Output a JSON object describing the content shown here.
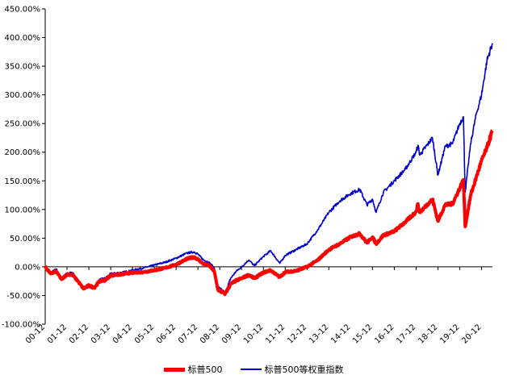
{
  "chart_data": {
    "type": "line",
    "title": "",
    "xlabel": "",
    "ylabel": "",
    "ylim": [
      -100,
      450
    ],
    "yticks": [
      "-100.00%",
      "-50.00%",
      "0.00%",
      "50.00%",
      "100.00%",
      "150.00%",
      "200.00%",
      "250.00%",
      "300.00%",
      "350.00%",
      "400.00%",
      "450.00%"
    ],
    "xticks": [
      "00-12",
      "01-12",
      "02-12",
      "03-12",
      "04-12",
      "05-12",
      "06-12",
      "07-12",
      "08-12",
      "09-12",
      "10-12",
      "11-12",
      "12-12",
      "13-12",
      "14-12",
      "15-12",
      "16-12",
      "17-12",
      "18-12",
      "19-12",
      "20-12"
    ],
    "x_start": "2000-12",
    "x_end": "2021-06",
    "grid": false,
    "legend_position": "bottom",
    "series": [
      {
        "name": "标普500",
        "color": "#ff0000",
        "points": [
          [
            "2000-12",
            0
          ],
          [
            "2001-03",
            -12
          ],
          [
            "2001-06",
            -8
          ],
          [
            "2001-09",
            -22
          ],
          [
            "2001-12",
            -13
          ],
          [
            "2002-03",
            -14
          ],
          [
            "2002-06",
            -25
          ],
          [
            "2002-09",
            -38
          ],
          [
            "2002-12",
            -33
          ],
          [
            "2003-03",
            -36
          ],
          [
            "2003-06",
            -25
          ],
          [
            "2003-09",
            -23
          ],
          [
            "2003-12",
            -15
          ],
          [
            "2004-06",
            -13
          ],
          [
            "2004-12",
            -10
          ],
          [
            "2005-06",
            -9
          ],
          [
            "2005-12",
            -6
          ],
          [
            "2006-06",
            -2
          ],
          [
            "2006-12",
            4
          ],
          [
            "2007-06",
            14
          ],
          [
            "2007-10",
            17
          ],
          [
            "2007-12",
            13
          ],
          [
            "2008-03",
            5
          ],
          [
            "2008-06",
            3
          ],
          [
            "2008-09",
            -8
          ],
          [
            "2008-11",
            -40
          ],
          [
            "2009-03",
            -47
          ],
          [
            "2009-06",
            -30
          ],
          [
            "2009-09",
            -24
          ],
          [
            "2009-12",
            -20
          ],
          [
            "2010-04",
            -14
          ],
          [
            "2010-07",
            -20
          ],
          [
            "2010-12",
            -10
          ],
          [
            "2011-04",
            -6
          ],
          [
            "2011-09",
            -18
          ],
          [
            "2011-12",
            -9
          ],
          [
            "2012-06",
            -7
          ],
          [
            "2012-12",
            0
          ],
          [
            "2013-06",
            12
          ],
          [
            "2013-12",
            30
          ],
          [
            "2014-06",
            40
          ],
          [
            "2014-12",
            52
          ],
          [
            "2015-05",
            58
          ],
          [
            "2015-09",
            42
          ],
          [
            "2015-12",
            52
          ],
          [
            "2016-02",
            40
          ],
          [
            "2016-06",
            55
          ],
          [
            "2016-12",
            62
          ],
          [
            "2017-06",
            78
          ],
          [
            "2017-12",
            96
          ],
          [
            "2018-01",
            110
          ],
          [
            "2018-02",
            95
          ],
          [
            "2018-09",
            118
          ],
          [
            "2018-12",
            80
          ],
          [
            "2019-04",
            108
          ],
          [
            "2019-08",
            110
          ],
          [
            "2019-12",
            137
          ],
          [
            "2020-02",
            152
          ],
          [
            "2020-03",
            70
          ],
          [
            "2020-06",
            125
          ],
          [
            "2020-09",
            155
          ],
          [
            "2020-12",
            185
          ],
          [
            "2021-03",
            208
          ],
          [
            "2021-06",
            238
          ]
        ]
      },
      {
        "name": "标普500等权重指数",
        "color": "#0000cc",
        "points": [
          [
            "2000-12",
            0
          ],
          [
            "2001-03",
            -10
          ],
          [
            "2001-06",
            -4
          ],
          [
            "2001-09",
            -20
          ],
          [
            "2001-12",
            -11
          ],
          [
            "2002-03",
            -10
          ],
          [
            "2002-06",
            -23
          ],
          [
            "2002-09",
            -38
          ],
          [
            "2002-12",
            -33
          ],
          [
            "2003-03",
            -36
          ],
          [
            "2003-06",
            -22
          ],
          [
            "2003-09",
            -20
          ],
          [
            "2003-12",
            -12
          ],
          [
            "2004-06",
            -10
          ],
          [
            "2004-12",
            -6
          ],
          [
            "2005-06",
            -2
          ],
          [
            "2005-12",
            3
          ],
          [
            "2006-06",
            8
          ],
          [
            "2006-12",
            15
          ],
          [
            "2007-06",
            24
          ],
          [
            "2007-10",
            26
          ],
          [
            "2007-12",
            22
          ],
          [
            "2008-03",
            12
          ],
          [
            "2008-06",
            8
          ],
          [
            "2008-09",
            -2
          ],
          [
            "2008-11",
            -35
          ],
          [
            "2009-03",
            -45
          ],
          [
            "2009-06",
            -20
          ],
          [
            "2009-09",
            -8
          ],
          [
            "2009-12",
            0
          ],
          [
            "2010-04",
            12
          ],
          [
            "2010-07",
            2
          ],
          [
            "2010-12",
            18
          ],
          [
            "2011-04",
            28
          ],
          [
            "2011-09",
            6
          ],
          [
            "2011-12",
            20
          ],
          [
            "2012-06",
            30
          ],
          [
            "2012-12",
            40
          ],
          [
            "2013-06",
            65
          ],
          [
            "2013-12",
            95
          ],
          [
            "2014-06",
            115
          ],
          [
            "2014-12",
            128
          ],
          [
            "2015-05",
            135
          ],
          [
            "2015-09",
            108
          ],
          [
            "2015-12",
            118
          ],
          [
            "2016-02",
            95
          ],
          [
            "2016-06",
            130
          ],
          [
            "2016-12",
            150
          ],
          [
            "2017-06",
            170
          ],
          [
            "2017-12",
            200
          ],
          [
            "2018-01",
            212
          ],
          [
            "2018-02",
            195
          ],
          [
            "2018-09",
            225
          ],
          [
            "2018-12",
            160
          ],
          [
            "2019-04",
            210
          ],
          [
            "2019-08",
            215
          ],
          [
            "2019-12",
            250
          ],
          [
            "2020-02",
            262
          ],
          [
            "2020-03",
            130
          ],
          [
            "2020-06",
            215
          ],
          [
            "2020-09",
            265
          ],
          [
            "2020-12",
            300
          ],
          [
            "2021-03",
            360
          ],
          [
            "2021-06",
            390
          ]
        ]
      }
    ]
  }
}
